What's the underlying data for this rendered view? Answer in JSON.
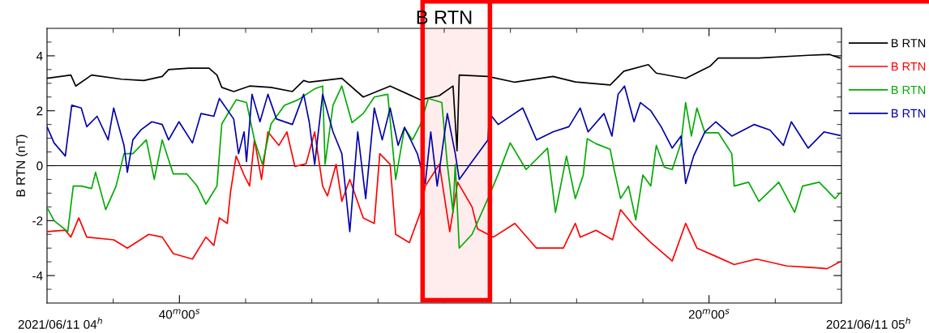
{
  "chart_data": {
    "type": "line",
    "title": "B RTN",
    "ylabel": "B RTN (nT)",
    "xlim": [
      "2021-06-11T04:30",
      "2021-06-11T05:30"
    ],
    "ylim": [
      -5,
      5
    ],
    "xticks": [
      {
        "value": "2021-06-11T04:35",
        "label": null
      },
      {
        "value": "2021-06-11T04:40",
        "label": "40$^{m}$00$^{s}$"
      },
      {
        "value": "2021-06-11T04:45",
        "label": null
      },
      {
        "value": "2021-06-11T04:50",
        "label": null
      },
      {
        "value": "2021-06-11T04:55",
        "label": null
      },
      {
        "value": "2021-06-11T05:00",
        "label": null
      },
      {
        "value": "2021-06-11T05:05",
        "label": null
      },
      {
        "value": "2021-06-11T05:10",
        "label": null
      },
      {
        "value": "2021-06-11T05:15",
        "label": null
      },
      {
        "value": "2021-06-11T05:20",
        "label": "20$^{m}$00$^{s}$"
      },
      {
        "value": "2021-06-11T05:25",
        "label": null
      }
    ],
    "yticks": [
      {
        "value": -4.5,
        "label": null
      },
      -4,
      {
        "value": -3.5,
        "label": null
      },
      {
        "value": -3,
        "label": null
      },
      {
        "value": -2.5,
        "label": null
      },
      -2,
      {
        "value": -1.5,
        "label": null
      },
      {
        "value": -1,
        "label": null
      },
      {
        "value": -0.5,
        "label": null
      },
      0,
      {
        "value": 0.5,
        "label": null
      },
      {
        "value": 1,
        "label": null
      },
      {
        "value": 1.5,
        "label": null
      },
      2,
      {
        "value": 2.5,
        "label": null
      },
      {
        "value": 3,
        "label": null
      },
      {
        "value": 3.5,
        "label": null
      },
      4,
      {
        "value": 4.5,
        "label": null
      }
    ],
    "grid": false,
    "legend": "top right",
    "marker": "none",
    "line_style": "solid",
    "ref_lines": [
      {
        "axis": "y",
        "value": 0,
        "color": "#000000"
      }
    ],
    "bands": [
      {
        "axis": "x",
        "from": "2021-06-11T04:58:22",
        "to": "2021-06-11T05:03:27",
        "color": "#ff0000"
      }
    ],
    "annotations": [
      "2021/06/11 04$^{h}$",
      "2021/06/11 05$^{h}$"
    ],
    "series": [
      {
        "name": "B RTN",
        "color": "#000000",
        "x": [
          "2021-06-11T04:30:00",
          "2021-06-11T04:31:48",
          "2021-06-11T04:32:10",
          "2021-06-11T04:33:22",
          "2021-06-11T04:35:38",
          "2021-06-11T04:37:19",
          "2021-06-11T04:38:42",
          "2021-06-11T04:39:11",
          "2021-06-11T04:40:44",
          "2021-06-11T04:42:14",
          "2021-06-11T04:42:50",
          "2021-06-11T04:43:12",
          "2021-06-11T04:44:06",
          "2021-06-11T04:45:18",
          "2021-06-11T04:46:55",
          "2021-06-11T04:48:32",
          "2021-06-11T04:49:23",
          "2021-06-11T04:49:48",
          "2021-06-11T04:52:16",
          "2021-06-11T04:53:53",
          "2021-06-11T04:55:55",
          "2021-06-11T04:58:12",
          "2021-06-11T04:59:38",
          "2021-06-11T05:00:40",
          "2021-06-11T05:00:58",
          "2021-06-11T05:01:08",
          "2021-06-11T05:03:18",
          "2021-06-11T05:05:20",
          "2021-06-11T05:08:13",
          "2021-06-11T05:09:54",
          "2021-06-11T05:12:32",
          "2021-06-11T05:13:34",
          "2021-06-11T05:15:25",
          "2021-06-11T05:16:01",
          "2021-06-11T05:18:14",
          "2021-06-11T05:20:06",
          "2021-06-11T05:20:42",
          "2021-06-11T05:23:46",
          "2021-06-11T05:27:29",
          "2021-06-11T05:29:06",
          "2021-06-11T05:29:53"
        ],
        "values": [
          3.18,
          3.3,
          2.9,
          3.3,
          3.15,
          3.1,
          3.25,
          3.5,
          3.55,
          3.55,
          3.3,
          2.85,
          2.7,
          2.9,
          2.85,
          2.7,
          3.1,
          3.04,
          3.18,
          2.5,
          2.9,
          2.4,
          2.55,
          2.9,
          0.54,
          3.3,
          3.25,
          3.04,
          3.25,
          3.05,
          2.94,
          3.44,
          3.68,
          3.37,
          3.18,
          3.63,
          3.92,
          3.92,
          4.02,
          4.05,
          3.92
        ]
      },
      {
        "name": "B RTN",
        "color": "#ff0000",
        "x": [
          "2021-06-11T04:30:00",
          "2021-06-11T04:31:23",
          "2021-06-11T04:31:48",
          "2021-06-11T04:32:24",
          "2021-06-11T04:33:00",
          "2021-06-11T04:35:02",
          "2021-06-11T04:36:04",
          "2021-06-11T04:37:41",
          "2021-06-11T04:38:42",
          "2021-06-11T04:39:32",
          "2021-06-11T04:40:59",
          "2021-06-11T04:42:00",
          "2021-06-11T04:42:36",
          "2021-06-11T04:43:01",
          "2021-06-11T04:43:37",
          "2021-06-11T04:43:52",
          "2021-06-11T04:44:17",
          "2021-06-11T04:44:53",
          "2021-06-11T04:45:18",
          "2021-06-11T04:45:40",
          "2021-06-11T04:46:12",
          "2021-06-11T04:46:41",
          "2021-06-11T04:47:31",
          "2021-06-11T04:48:07",
          "2021-06-11T04:48:43",
          "2021-06-11T04:49:34",
          "2021-06-11T04:50:13",
          "2021-06-11T04:50:49",
          "2021-06-11T04:51:11",
          "2021-06-11T04:51:50",
          "2021-06-11T04:52:16",
          "2021-06-11T04:52:52",
          "2021-06-11T04:53:53",
          "2021-06-11T04:54:43",
          "2021-06-11T04:55:08",
          "2021-06-11T04:55:55",
          "2021-06-11T04:56:20",
          "2021-06-11T04:57:22",
          "2021-06-11T04:58:12",
          "2021-06-11T04:58:34",
          "2021-06-11T04:59:38",
          "2021-06-11T05:00:25",
          "2021-06-11T05:01:01",
          "2021-06-11T05:02:06",
          "2021-06-11T05:02:31",
          "2021-06-11T05:03:43",
          "2021-06-11T05:05:20",
          "2021-06-11T05:06:58",
          "2021-06-11T05:09:00",
          "2021-06-11T05:09:54",
          "2021-06-11T05:10:16",
          "2021-06-11T05:11:28",
          "2021-06-11T05:12:43",
          "2021-06-11T05:13:19",
          "2021-06-11T05:14:20",
          "2021-06-11T05:15:36",
          "2021-06-11T05:17:13",
          "2021-06-11T05:18:14",
          "2021-06-11T05:19:05",
          "2021-06-11T05:20:31",
          "2021-06-11T05:21:54",
          "2021-06-11T05:23:35",
          "2021-06-11T05:25:52",
          "2021-06-11T05:27:29",
          "2021-06-11T05:28:55",
          "2021-06-11T05:29:53"
        ],
        "values": [
          -2.4,
          -2.35,
          -2.6,
          -1.9,
          -2.6,
          -2.7,
          -3.0,
          -2.5,
          -2.6,
          -3.2,
          -3.4,
          -2.6,
          -2.9,
          -1.9,
          -2.1,
          -0.93,
          0.35,
          -0.34,
          -0.74,
          0.94,
          -0.5,
          1.23,
          0.74,
          1.23,
          -0.03,
          0.07,
          1.23,
          -0.74,
          -1.1,
          0.05,
          -1.3,
          -0.5,
          -1.9,
          -2.1,
          0.44,
          0.05,
          -2.5,
          -2.8,
          -1.7,
          -0.74,
          0.05,
          -2.4,
          -0.6,
          -1.5,
          -2.3,
          -2.6,
          -2.1,
          -3.0,
          -3.0,
          -2.1,
          -2.6,
          -2.35,
          -2.7,
          -1.6,
          -2.2,
          -2.8,
          -3.47,
          -2.1,
          -3.0,
          -3.3,
          -3.6,
          -3.4,
          -3.65,
          -3.7,
          -3.75,
          -3.5
        ]
      },
      {
        "name": "B RTN",
        "color": "#00aa00",
        "x": [
          "2021-06-11T04:30:00",
          "2021-06-11T04:30:32",
          "2021-06-11T04:31:34",
          "2021-06-11T04:31:59",
          "2021-06-11T04:32:35",
          "2021-06-11T04:33:22",
          "2021-06-11T04:33:40",
          "2021-06-11T04:34:26",
          "2021-06-11T04:35:13",
          "2021-06-11T04:35:49",
          "2021-06-11T04:36:29",
          "2021-06-11T04:37:30",
          "2021-06-11T04:38:06",
          "2021-06-11T04:38:42",
          "2021-06-11T04:39:32",
          "2021-06-11T04:40:34",
          "2021-06-11T04:41:20",
          "2021-06-11T04:42:00",
          "2021-06-11T04:42:50",
          "2021-06-11T04:43:12",
          "2021-06-11T04:44:17",
          "2021-06-11T04:45:04",
          "2021-06-11T04:45:40",
          "2021-06-11T04:46:16",
          "2021-06-11T04:46:55",
          "2021-06-11T04:47:56",
          "2021-06-11T04:48:58",
          "2021-06-11T04:50:13",
          "2021-06-11T04:50:49",
          "2021-06-11T04:51:00",
          "2021-06-11T04:51:36",
          "2021-06-11T04:52:16",
          "2021-06-11T04:53:02",
          "2021-06-11T04:53:53",
          "2021-06-11T04:54:43",
          "2021-06-11T04:55:44",
          "2021-06-11T04:56:20",
          "2021-06-11T04:57:00",
          "2021-06-11T04:57:36",
          "2021-06-11T04:58:12",
          "2021-06-11T04:58:48",
          "2021-06-11T04:59:49",
          "2021-06-11T05:00:14",
          "2021-06-11T05:00:40",
          "2021-06-11T05:00:50",
          "2021-06-11T05:01:08",
          "2021-06-11T05:02:06",
          "2021-06-11T05:03:18",
          "2021-06-11T05:04:05",
          "2021-06-11T05:04:59",
          "2021-06-11T05:06:11",
          "2021-06-11T05:07:48",
          "2021-06-11T05:08:24",
          "2021-06-11T05:09:14",
          "2021-06-11T05:09:54",
          "2021-06-11T05:10:30",
          "2021-06-11T05:10:48",
          "2021-06-11T05:11:28",
          "2021-06-11T05:12:32",
          "2021-06-11T05:12:50",
          "2021-06-11T05:13:19",
          "2021-06-11T05:13:55",
          "2021-06-11T05:14:28",
          "2021-06-11T05:15:00",
          "2021-06-11T05:15:36",
          "2021-06-11T05:16:01",
          "2021-06-11T05:16:37",
          "2021-06-11T05:17:13",
          "2021-06-11T05:17:53",
          "2021-06-11T05:18:14",
          "2021-06-11T05:18:40",
          "2021-06-11T05:19:05",
          "2021-06-11T05:19:41",
          "2021-06-11T05:20:42",
          "2021-06-11T05:21:43",
          "2021-06-11T05:21:54",
          "2021-06-11T05:22:59",
          "2021-06-11T05:23:46",
          "2021-06-11T05:25:16",
          "2021-06-11T05:26:28",
          "2021-06-11T05:27:04",
          "2021-06-11T05:28:19",
          "2021-06-11T05:29:31",
          "2021-06-11T05:29:53"
        ],
        "values": [
          -1.52,
          -2.0,
          -2.4,
          -0.74,
          -0.74,
          -0.83,
          -0.24,
          -1.6,
          -0.74,
          0.44,
          0.44,
          0.94,
          -0.5,
          0.94,
          -0.3,
          -0.3,
          -0.74,
          -1.4,
          -0.74,
          1.52,
          2.4,
          2.3,
          0.94,
          0.05,
          1.52,
          2.2,
          2.4,
          2.8,
          2.9,
          0.05,
          2.2,
          2.9,
          1.57,
          1.9,
          2.5,
          2.6,
          -0.5,
          1.37,
          0.94,
          1.5,
          2.45,
          2.3,
          0.05,
          -1.7,
          0.05,
          -3.0,
          -2.5,
          -1.2,
          -0.3,
          0.83,
          -0.14,
          0.64,
          -1.7,
          0.35,
          -1.2,
          -0.34,
          0.98,
          0.8,
          0.6,
          -0.14,
          -1.2,
          -0.74,
          -1.97,
          -0.34,
          -0.74,
          0.74,
          -0.05,
          -0.14,
          0.83,
          2.3,
          1.08,
          2.1,
          1.2,
          1.2,
          0.44,
          -0.74,
          -0.6,
          -1.3,
          -0.6,
          -1.7,
          -0.74,
          -0.6,
          -1.2,
          -1.0
        ]
      },
      {
        "name": "B RTN",
        "color": "#0000aa",
        "x": [
          "2021-06-11T04:30:00",
          "2021-06-11T04:30:32",
          "2021-06-11T04:31:23",
          "2021-06-11T04:31:52",
          "2021-06-11T04:32:35",
          "2021-06-11T04:33:00",
          "2021-06-11T04:33:47",
          "2021-06-11T04:34:37",
          "2021-06-11T04:35:02",
          "2021-06-11T04:35:49",
          "2021-06-11T04:36:04",
          "2021-06-11T04:36:29",
          "2021-06-11T04:37:05",
          "2021-06-11T04:37:55",
          "2021-06-11T04:38:42",
          "2021-06-11T04:39:11",
          "2021-06-11T04:39:58",
          "2021-06-11T04:40:59",
          "2021-06-11T04:41:38",
          "2021-06-11T04:42:36",
          "2021-06-11T04:43:01",
          "2021-06-11T04:44:06",
          "2021-06-11T04:44:28",
          "2021-06-11T04:44:53",
          "2021-06-11T04:45:04",
          "2021-06-11T04:45:29",
          "2021-06-11T04:46:05",
          "2021-06-11T04:46:41",
          "2021-06-11T04:47:20",
          "2021-06-11T04:48:32",
          "2021-06-11T04:49:23",
          "2021-06-11T04:49:48",
          "2021-06-11T04:50:13",
          "2021-06-11T04:50:49",
          "2021-06-11T04:51:36",
          "2021-06-11T04:52:16",
          "2021-06-11T04:52:52",
          "2021-06-11T04:53:28",
          "2021-06-11T04:54:04",
          "2021-06-11T04:54:43",
          "2021-06-11T04:55:19",
          "2021-06-11T04:55:55",
          "2021-06-11T04:56:31",
          "2021-06-11T04:57:00",
          "2021-06-11T04:57:58",
          "2021-06-11T04:58:34",
          "2021-06-11T04:58:59",
          "2021-06-11T04:59:28",
          "2021-06-11T05:00:14",
          "2021-06-11T05:00:50",
          "2021-06-11T05:01:08",
          "2021-06-11T05:02:06",
          "2021-06-11T05:03:18",
          "2021-06-11T05:03:25",
          "2021-06-11T05:04:05",
          "2021-06-11T05:05:56",
          "2021-06-11T05:06:58",
          "2021-06-11T05:08:13",
          "2021-06-11T05:09:25",
          "2021-06-11T05:10:16",
          "2021-06-11T05:10:52",
          "2021-06-11T05:12:04",
          "2021-06-11T05:12:40",
          "2021-06-11T05:13:08",
          "2021-06-11T05:13:37",
          "2021-06-11T05:14:20",
          "2021-06-11T05:14:49",
          "2021-06-11T05:15:36",
          "2021-06-11T05:16:23",
          "2021-06-11T05:17:13",
          "2021-06-11T05:17:53",
          "2021-06-11T05:18:14",
          "2021-06-11T05:18:50",
          "2021-06-11T05:19:41",
          "2021-06-11T05:20:31",
          "2021-06-11T05:21:43",
          "2021-06-11T05:23:24",
          "2021-06-11T05:24:36",
          "2021-06-11T05:25:37",
          "2021-06-11T05:26:13",
          "2021-06-11T05:27:29",
          "2021-06-11T05:28:41",
          "2021-06-11T05:29:53"
        ],
        "values": [
          1.42,
          0.83,
          0.35,
          2.2,
          2.1,
          1.42,
          1.8,
          0.94,
          2.1,
          0.74,
          -0.24,
          0.94,
          1.3,
          1.6,
          1.5,
          0.94,
          1.6,
          0.83,
          1.9,
          1.8,
          2.45,
          1.7,
          0.44,
          1.23,
          0.15,
          2.6,
          1.6,
          2.6,
          1.7,
          1.5,
          2.6,
          1.6,
          0.05,
          2.6,
          1.23,
          0.44,
          -2.4,
          1.23,
          -1.2,
          2.1,
          0.94,
          2.1,
          0.74,
          1.4,
          0.44,
          -0.65,
          1.23,
          -0.74,
          1.9,
          0.44,
          -0.5,
          0.15,
          0.94,
          1.9,
          1.5,
          2.1,
          0.94,
          1.23,
          1.42,
          2.1,
          1.23,
          1.9,
          1.08,
          2.6,
          2.9,
          1.6,
          2.3,
          2.0,
          1.42,
          0.64,
          1.08,
          -0.65,
          0.35,
          1.23,
          1.6,
          1.08,
          1.5,
          1.3,
          0.74,
          1.6,
          0.64,
          1.23,
          1.1
        ]
      }
    ]
  }
}
